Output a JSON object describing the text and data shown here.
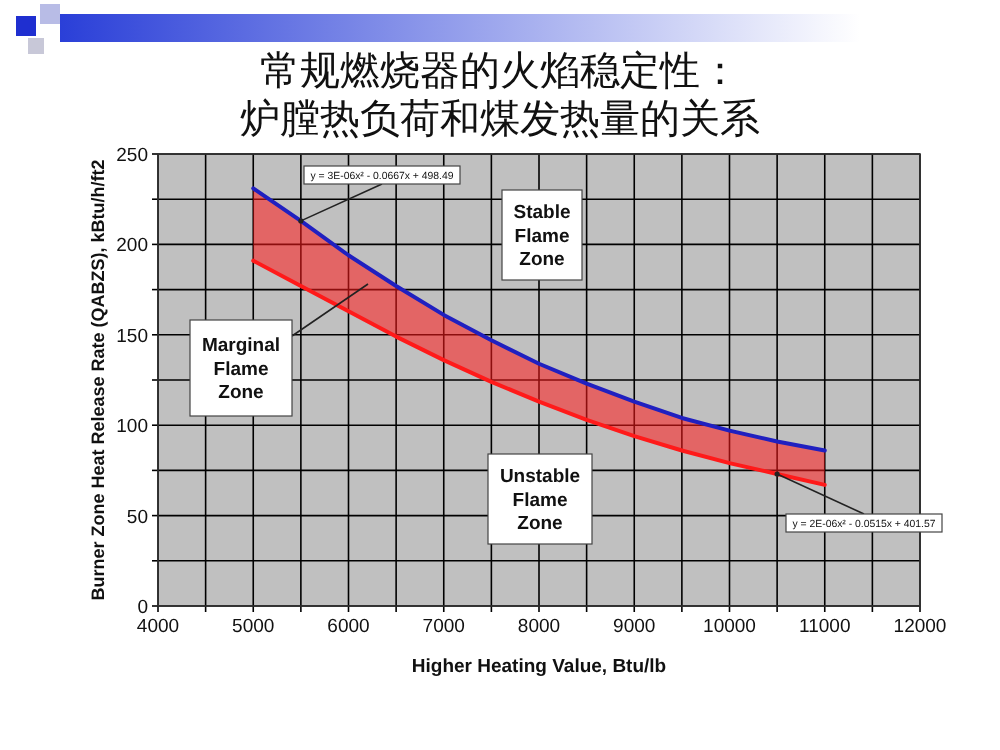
{
  "chart_data": {
    "type": "line",
    "title": "常规燃烧器的火焰稳定性：",
    "subtitle": "炉膛热负荷和煤发热量的关系",
    "xlabel": "Higher Heating Value, Btu/lb",
    "ylabel": "Burner Zone Heat Release Rate (QABZS), kBtu/h/ft2",
    "x": [
      5000,
      5500,
      6000,
      6500,
      7000,
      7500,
      8000,
      8500,
      9000,
      9500,
      10000,
      10500,
      11000
    ],
    "series": [
      {
        "color": "#2020c0",
        "values": [
          231,
          213,
          194,
          177,
          161,
          147,
          134,
          123,
          113,
          104,
          97,
          91,
          86
        ]
      },
      {
        "color": "#ff1a1a",
        "values": [
          191,
          177,
          163,
          149,
          136,
          124,
          113,
          103,
          94,
          86,
          79,
          73,
          67
        ],
        "lower": [
          191,
          177,
          163,
          149,
          136,
          124,
          113,
          103,
          94,
          86,
          79,
          73,
          67
        ],
        "upper": [
          231,
          213,
          194,
          177,
          161,
          147,
          134,
          123,
          113,
          104,
          97,
          91,
          86
        ]
      }
    ],
    "xlim": [
      4000,
      12000
    ],
    "xticks": [
      4000,
      {
        "value": 4500,
        "label": null
      },
      5000,
      {
        "value": 5500,
        "label": null
      },
      6000,
      {
        "value": 6500,
        "label": null
      },
      7000,
      {
        "value": 7500,
        "label": null
      },
      8000,
      {
        "value": 8500,
        "label": null
      },
      9000,
      {
        "value": 9500,
        "label": null
      },
      10000,
      {
        "value": 10500,
        "label": null
      },
      11000,
      {
        "value": 11500,
        "label": null
      },
      12000
    ],
    "ylim": [
      0,
      250
    ],
    "yticks": [
      0,
      {
        "value": 25,
        "label": null
      },
      50,
      {
        "value": 75,
        "label": null
      },
      100,
      {
        "value": 125,
        "label": null
      },
      150,
      {
        "value": 175,
        "label": null
      },
      200,
      {
        "value": 225,
        "label": null
      },
      250
    ],
    "grid": true,
    "marker": "none",
    "line_style": "solid",
    "annotations": [
      {
        "text": "y = 3E-06x² - 0.0667x + 498.49",
        "x": 5500,
        "y": 213
      },
      {
        "text": "Stable\nFlame\nZone"
      },
      "Marginal\nFlame\nZone",
      {
        "text": "Unstable\nFlame\nZone"
      },
      {
        "text": "y = 2E-06x² - 0.0515x + 401.57",
        "x": 10500,
        "y": 73
      }
    ]
  }
}
